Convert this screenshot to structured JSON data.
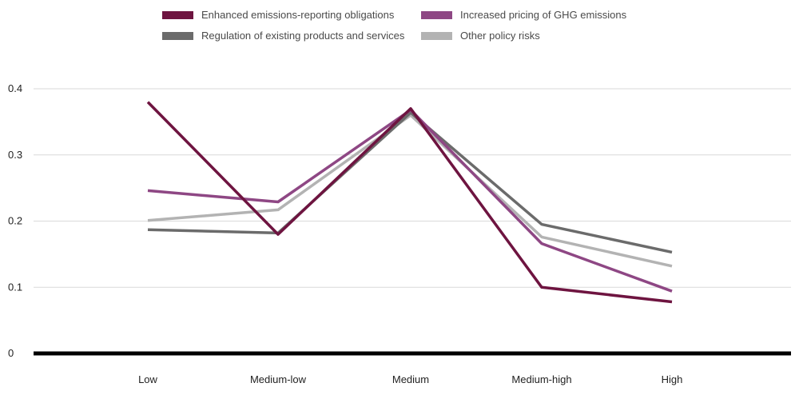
{
  "chart_data": {
    "type": "line",
    "title": "",
    "xlabel": "",
    "ylabel": "",
    "categories": [
      "Low",
      "Medium-low",
      "Medium",
      "Medium-high",
      "High"
    ],
    "ylim": [
      0,
      0.4
    ],
    "yticks": [
      "0",
      "0.1",
      "0.2",
      "0.3",
      "0.4"
    ],
    "grid": true,
    "legend_position": "top",
    "series": [
      {
        "name": "Enhanced emissions-reporting obligations",
        "color": "#6e1440",
        "values": [
          0.38,
          0.18,
          0.37,
          0.1,
          0.078
        ]
      },
      {
        "name": "Increased pricing of GHG emissions",
        "color": "#8e4784",
        "values": [
          0.246,
          0.229,
          0.368,
          0.166,
          0.094
        ]
      },
      {
        "name": "Regulation of existing products and services",
        "color": "#6b6b6b",
        "values": [
          0.187,
          0.182,
          0.364,
          0.195,
          0.153
        ]
      },
      {
        "name": "Other policy risks",
        "color": "#b3b3b3",
        "values": [
          0.201,
          0.217,
          0.36,
          0.176,
          0.132
        ]
      }
    ]
  }
}
